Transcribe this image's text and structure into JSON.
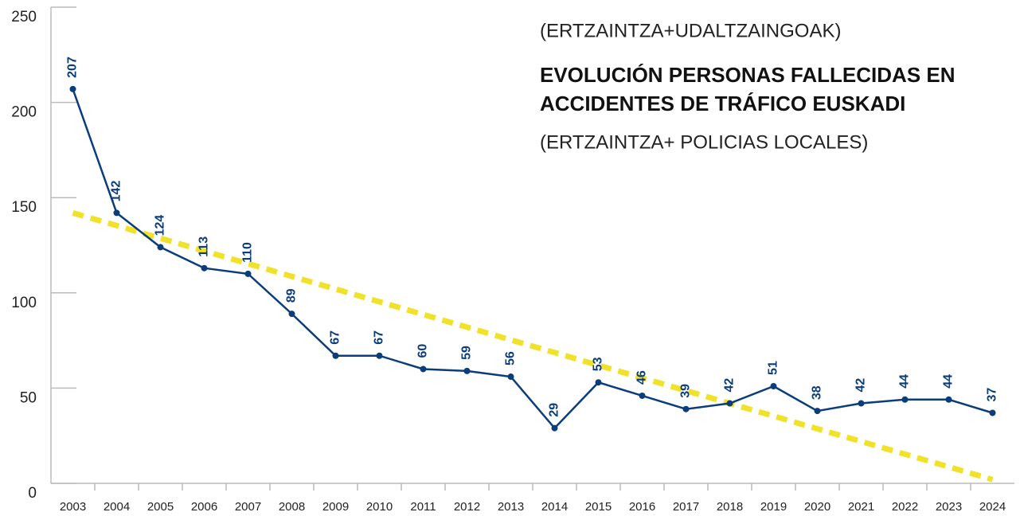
{
  "chart_data": {
    "type": "line",
    "top_note": "(ERTZAINTZA+UDALTZAINGOAK)",
    "title": [
      "EVOLUCIÓN PERSONAS FALLECIDAS EN",
      "ACCIDENTES DE TRÁFICO EUSKADI"
    ],
    "subtitle": "(ERTZAINTZA+ POLICIAS LOCALES)",
    "categories": [
      "2003",
      "2004",
      "2005",
      "2006",
      "2007",
      "2008",
      "2009",
      "2010",
      "2011",
      "2012",
      "2013",
      "2014",
      "2015",
      "2016",
      "2017",
      "2018",
      "2019",
      "2020",
      "2021",
      "2022",
      "2023",
      "2024"
    ],
    "values": [
      207,
      142,
      124,
      113,
      110,
      89,
      67,
      67,
      60,
      59,
      56,
      29,
      53,
      46,
      39,
      42,
      51,
      38,
      42,
      44,
      44,
      37
    ],
    "color": "#0a3d7a",
    "trendline": {
      "color": "#f0e22a",
      "values": [
        142,
        2
      ]
    },
    "ylim": [
      0,
      250
    ],
    "yticks": [
      0,
      50,
      100,
      150,
      200,
      250
    ]
  }
}
